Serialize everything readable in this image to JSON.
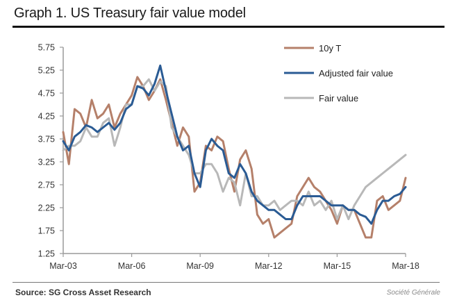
{
  "header": {
    "title": "Graph 1. US Treasury fair value model"
  },
  "footer": {
    "source": "Source: SG Cross Asset Research",
    "brand": "Société Générale"
  },
  "chart_data": {
    "type": "line",
    "title": "Graph 1. US Treasury fair value model",
    "xlabel": "",
    "ylabel": "",
    "xlim": [
      2003.17,
      2018.17
    ],
    "ylim": [
      1.25,
      5.75
    ],
    "yticks": [
      5.75,
      5.25,
      4.75,
      4.25,
      3.75,
      3.25,
      2.75,
      2.25,
      1.75,
      1.25
    ],
    "ytick_labels": [
      "5.75",
      "5.25",
      "4.75",
      "4.25",
      "3.75",
      "3.25",
      "2.75",
      "2.25",
      "1.75",
      "1.25"
    ],
    "xticks": [
      2003.17,
      2006.17,
      2009.17,
      2012.17,
      2015.17,
      2018.17
    ],
    "xtick_labels": [
      "Mar-03",
      "Mar-06",
      "Mar-09",
      "Mar-12",
      "Mar-15",
      "Mar-18"
    ],
    "grid": false,
    "legend_position": "top-right",
    "x": [
      2003.17,
      2003.42,
      2003.67,
      2003.92,
      2004.17,
      2004.42,
      2004.67,
      2004.92,
      2005.17,
      2005.42,
      2005.67,
      2005.92,
      2006.17,
      2006.42,
      2006.67,
      2006.92,
      2007.17,
      2007.42,
      2007.67,
      2007.92,
      2008.17,
      2008.42,
      2008.67,
      2008.92,
      2009.17,
      2009.42,
      2009.67,
      2009.92,
      2010.17,
      2010.42,
      2010.67,
      2010.92,
      2011.17,
      2011.42,
      2011.67,
      2011.92,
      2012.17,
      2012.42,
      2012.67,
      2012.92,
      2013.17,
      2013.42,
      2013.67,
      2013.92,
      2014.17,
      2014.42,
      2014.67,
      2014.92,
      2015.17,
      2015.42,
      2015.67,
      2015.92,
      2016.17,
      2016.42,
      2016.67,
      2016.92,
      2017.17,
      2017.42,
      2017.67,
      2017.92,
      2018.17
    ],
    "series": [
      {
        "name": "10y T",
        "color": "#b5806a",
        "values": [
          3.9,
          3.2,
          4.4,
          4.3,
          4.0,
          4.6,
          4.2,
          4.3,
          4.5,
          4.0,
          4.3,
          4.5,
          4.7,
          5.1,
          4.9,
          4.6,
          4.8,
          5.05,
          4.6,
          4.1,
          3.6,
          4.0,
          3.8,
          2.6,
          2.8,
          3.6,
          3.5,
          3.8,
          3.7,
          3.1,
          2.6,
          3.3,
          3.5,
          3.1,
          2.1,
          1.9,
          2.0,
          1.6,
          1.7,
          1.8,
          1.9,
          2.5,
          2.7,
          2.9,
          2.7,
          2.6,
          2.4,
          2.2,
          1.9,
          2.3,
          2.2,
          2.2,
          1.9,
          1.6,
          1.6,
          2.4,
          2.5,
          2.2,
          2.3,
          2.4,
          2.9
        ]
      },
      {
        "name": "Adjusted fair value",
        "color": "#2a5b94",
        "values": [
          3.7,
          3.5,
          3.8,
          3.9,
          4.05,
          4.0,
          3.9,
          4.0,
          4.1,
          3.95,
          4.1,
          4.4,
          4.5,
          4.9,
          4.85,
          4.7,
          4.95,
          5.35,
          4.8,
          4.3,
          3.8,
          3.5,
          3.6,
          3.0,
          2.7,
          3.5,
          3.75,
          3.6,
          3.5,
          3.0,
          2.9,
          3.2,
          3.0,
          2.6,
          2.4,
          2.3,
          2.2,
          2.2,
          2.1,
          2.0,
          2.0,
          2.3,
          2.5,
          2.5,
          2.5,
          2.5,
          2.4,
          2.3,
          2.3,
          2.3,
          2.2,
          2.2,
          2.1,
          2.05,
          1.9,
          2.2,
          2.4,
          2.4,
          2.5,
          2.55,
          2.7
        ]
      },
      {
        "name": "Fair value",
        "color": "#b8b8b8",
        "values": [
          3.5,
          3.6,
          3.6,
          3.7,
          4.0,
          3.8,
          3.8,
          4.1,
          4.2,
          3.6,
          4.0,
          4.5,
          4.5,
          4.9,
          4.9,
          5.05,
          4.8,
          5.0,
          4.9,
          4.0,
          3.8,
          3.6,
          3.4,
          3.0,
          3.0,
          3.2,
          3.2,
          3.0,
          2.6,
          2.9,
          2.8,
          2.3,
          3.0,
          2.5,
          2.5,
          2.3,
          2.3,
          2.4,
          2.2,
          2.3,
          2.4,
          2.4,
          2.3,
          2.6,
          2.3,
          2.4,
          2.2,
          2.4,
          2.0,
          2.3,
          2.0,
          2.3,
          2.5,
          2.7,
          2.8,
          2.9,
          3.0,
          3.1,
          3.2,
          3.3,
          3.4
        ]
      }
    ]
  }
}
